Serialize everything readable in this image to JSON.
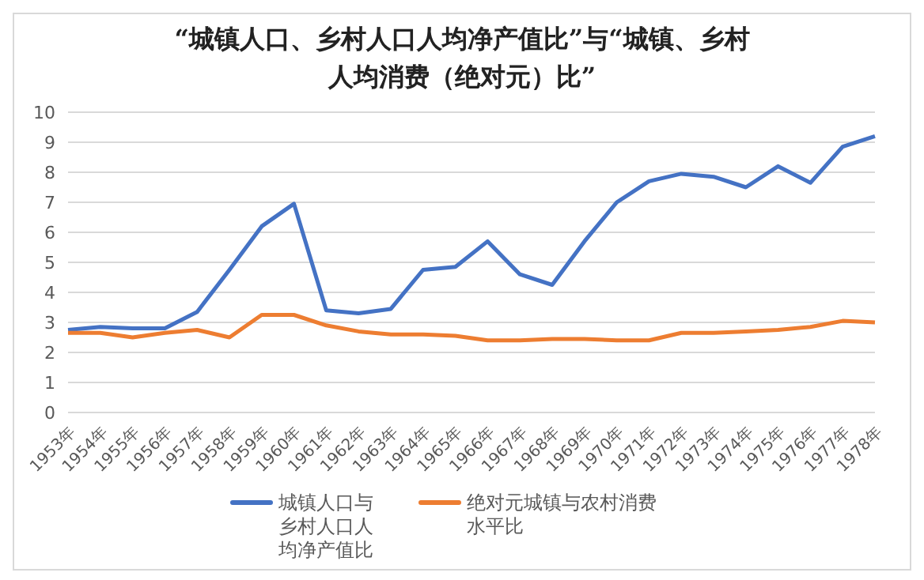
{
  "chart_data": {
    "type": "line",
    "title": "“城镇人口、乡村人口人均净产值比”与“城镇、乡村人均消费（绝对元）比”",
    "categories": [
      "1953年",
      "1954年",
      "1955年",
      "1956年",
      "1957年",
      "1958年",
      "1959年",
      "1960年",
      "1961年",
      "1962年",
      "1963年",
      "1964年",
      "1965年",
      "1966年",
      "1967年",
      "1968年",
      "1969年",
      "1970年",
      "1971年",
      "1972年",
      "1973年",
      "1974年",
      "1975年",
      "1976年",
      "1977年",
      "1978年"
    ],
    "series": [
      {
        "name": "城镇人口与乡村人口人均净产值比",
        "color": "#4472c4",
        "values": [
          2.75,
          2.85,
          2.8,
          2.8,
          3.35,
          4.75,
          6.2,
          6.95,
          3.4,
          3.3,
          3.45,
          4.75,
          4.85,
          5.7,
          4.6,
          4.25,
          5.7,
          7.0,
          7.7,
          7.95,
          7.85,
          7.5,
          8.2,
          7.65,
          8.85,
          9.2
        ]
      },
      {
        "name": "绝对元城镇与农村消费水平比",
        "color": "#ed7d31",
        "values": [
          2.65,
          2.65,
          2.5,
          2.65,
          2.75,
          2.5,
          3.25,
          3.25,
          2.9,
          2.7,
          2.6,
          2.6,
          2.55,
          2.4,
          2.4,
          2.45,
          2.45,
          2.4,
          2.4,
          2.65,
          2.65,
          2.7,
          2.75,
          2.85,
          3.05,
          3.0
        ]
      }
    ],
    "ylim": [
      0,
      10
    ],
    "yticks": [
      0,
      1,
      2,
      3,
      4,
      5,
      6,
      7,
      8,
      9,
      10
    ],
    "grid": "y",
    "legend": "bottom",
    "marker": "none",
    "line_style": "solid"
  }
}
